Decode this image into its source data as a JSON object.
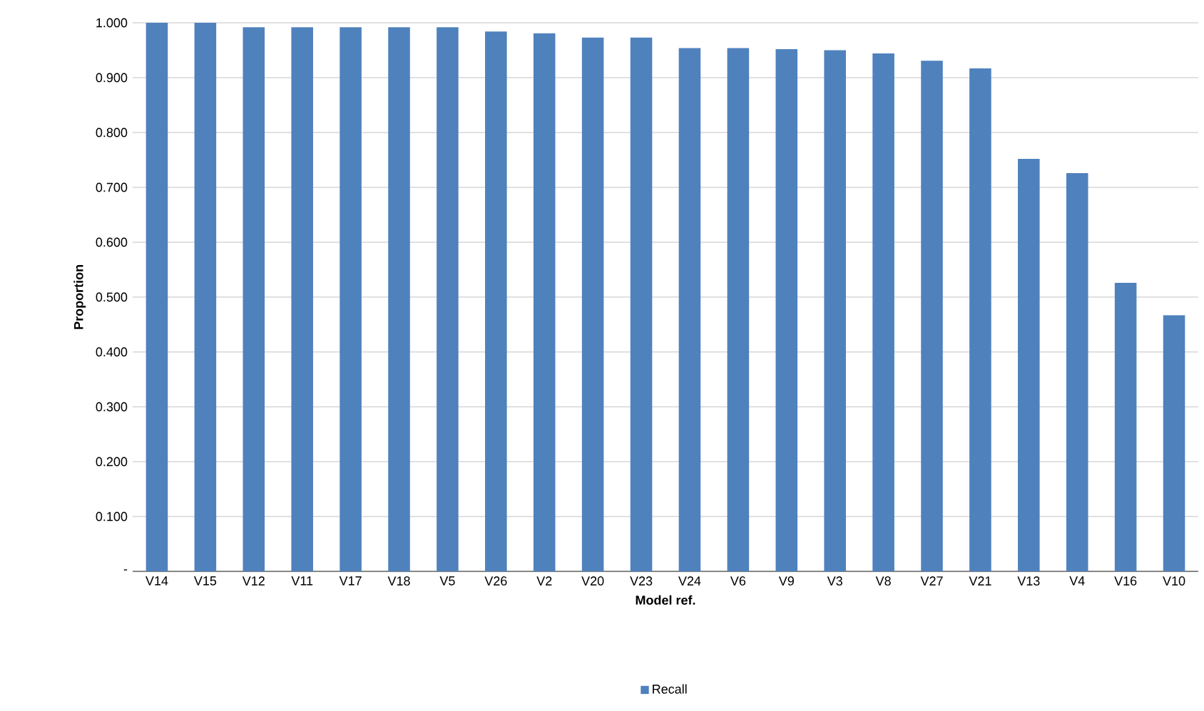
{
  "chart_data": {
    "type": "bar",
    "xlabel": "Model ref.",
    "ylabel": "Proportion",
    "categories": [
      "V14",
      "V15",
      "V12",
      "V11",
      "V17",
      "V18",
      "V5",
      "V26",
      "V2",
      "V20",
      "V23",
      "V24",
      "V6",
      "V9",
      "V3",
      "V8",
      "V27",
      "V21",
      "V13",
      "V4",
      "V16",
      "V10"
    ],
    "series": [
      {
        "name": "Recall",
        "color": "#4f81bd",
        "values": [
          1.0,
          1.0,
          0.992,
          0.992,
          0.992,
          0.992,
          0.992,
          0.984,
          0.981,
          0.973,
          0.973,
          0.954,
          0.954,
          0.952,
          0.95,
          0.944,
          0.931,
          0.917,
          0.752,
          0.726,
          0.526,
          0.467
        ]
      }
    ],
    "ylim": [
      0,
      1
    ],
    "yticks": [
      {
        "value": 0,
        "label": "-"
      },
      {
        "value": 0.1,
        "label": "0.100"
      },
      {
        "value": 0.2,
        "label": "0.200"
      },
      {
        "value": 0.3,
        "label": "0.300"
      },
      {
        "value": 0.4,
        "label": "0.400"
      },
      {
        "value": 0.5,
        "label": "0.500"
      },
      {
        "value": 0.6,
        "label": "0.600"
      },
      {
        "value": 0.7,
        "label": "0.700"
      },
      {
        "value": 0.8,
        "label": "0.800"
      },
      {
        "value": 0.9,
        "label": "0.900"
      },
      {
        "value": 1.0,
        "label": "1.000"
      }
    ],
    "grid": "y",
    "legend": "bottom"
  }
}
